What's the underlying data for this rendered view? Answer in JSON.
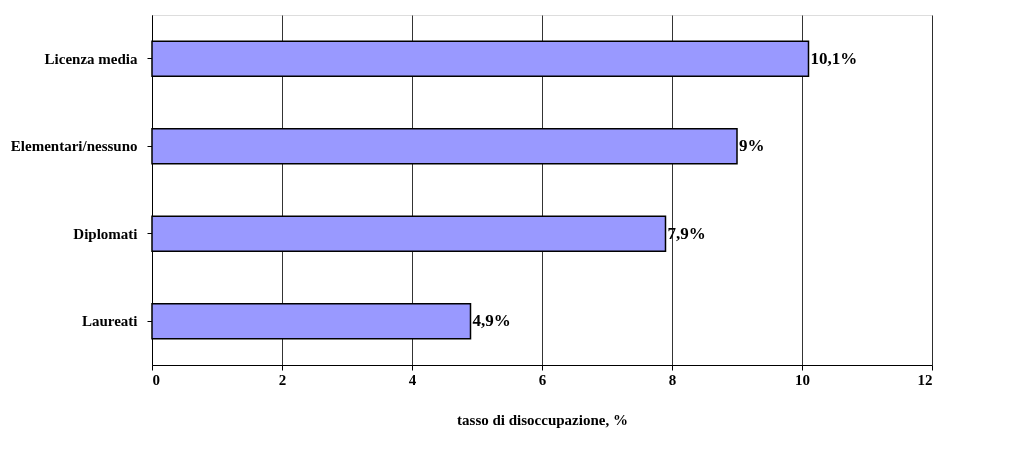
{
  "chart_data": {
    "type": "bar",
    "orientation": "horizontal",
    "categories": [
      "Licenza media",
      "Elementari/nessuno",
      "Diplomati",
      "Laureati"
    ],
    "values": [
      10.1,
      9,
      7.9,
      4.9
    ],
    "value_labels": [
      "10,1%",
      "9%",
      "7,9%",
      "4,9%"
    ],
    "color": "#9999ff",
    "xlabel": "tasso di disoccupazione, %",
    "xlim": [
      0,
      12
    ],
    "xticks": [
      0,
      2,
      4,
      6,
      8,
      10,
      12
    ],
    "grid": "x"
  }
}
